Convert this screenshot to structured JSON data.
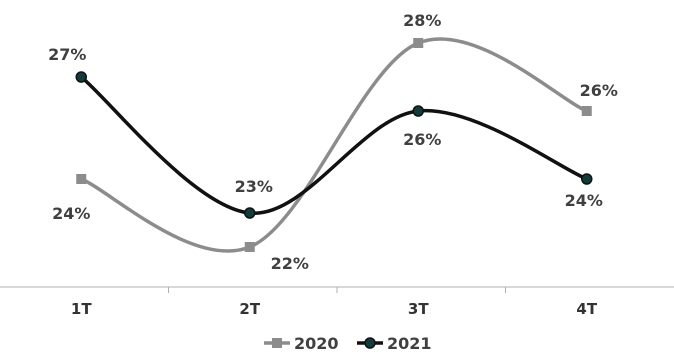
{
  "chart_data": {
    "type": "line",
    "categories": [
      "1T",
      "2T",
      "3T",
      "4T"
    ],
    "series": [
      {
        "name": "2020",
        "values": [
          24,
          22,
          28,
          26
        ],
        "labels": [
          "24%",
          "22%",
          "28%",
          "26%"
        ],
        "color": "#8c8c8c",
        "marker": "square"
      },
      {
        "name": "2021",
        "values": [
          27,
          23,
          26,
          24
        ],
        "labels": [
          "27%",
          "23%",
          "26%",
          "24%"
        ],
        "color": "#111111",
        "marker": "circle",
        "marker_fill": "#0f3d3d"
      }
    ],
    "title": "",
    "xlabel": "",
    "ylabel": "",
    "smooth": true,
    "grid": false,
    "legend": "bottom"
  }
}
